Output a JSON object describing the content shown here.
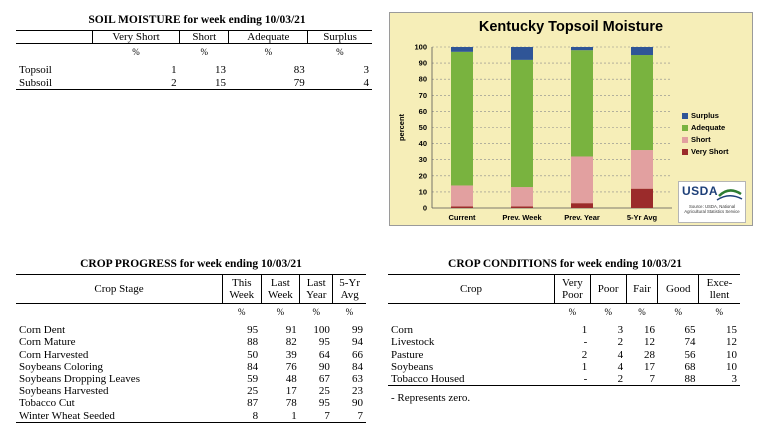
{
  "soil": {
    "title": "SOIL MOISTURE for week ending 10/03/21",
    "headers": [
      "Very Short",
      "Short",
      "Adequate",
      "Surplus"
    ],
    "unit": "%",
    "rows": [
      {
        "label": "Topsoil",
        "values": [
          "1",
          "13",
          "83",
          "3"
        ]
      },
      {
        "label": "Subsoil",
        "values": [
          "2",
          "15",
          "79",
          "4"
        ]
      }
    ]
  },
  "progress": {
    "title": "CROP PROGRESS for week ending 10/03/21",
    "stage_header": "Crop Stage",
    "col_headers": [
      {
        "top": "This",
        "bottom": "Week"
      },
      {
        "top": "Last",
        "bottom": "Week"
      },
      {
        "top": "Last",
        "bottom": "Year"
      },
      {
        "top": "5-Yr",
        "bottom": "Avg"
      }
    ],
    "unit": "%",
    "rows": [
      {
        "label": "Corn Dent",
        "values": [
          "95",
          "91",
          "100",
          "99"
        ]
      },
      {
        "label": "Corn Mature",
        "values": [
          "88",
          "82",
          "95",
          "94"
        ]
      },
      {
        "label": "Corn Harvested",
        "values": [
          "50",
          "39",
          "64",
          "66"
        ]
      },
      {
        "label": "Soybeans Coloring",
        "values": [
          "84",
          "76",
          "90",
          "84"
        ]
      },
      {
        "label": "Soybeans Dropping Leaves",
        "values": [
          "59",
          "48",
          "67",
          "63"
        ]
      },
      {
        "label": "Soybeans Harvested",
        "values": [
          "25",
          "17",
          "25",
          "23"
        ]
      },
      {
        "label": "Tobacco Cut",
        "values": [
          "87",
          "78",
          "95",
          "90"
        ]
      },
      {
        "label": "Winter Wheat Seeded",
        "values": [
          "8",
          "1",
          "7",
          "7"
        ]
      }
    ]
  },
  "conditions": {
    "title": "CROP CONDITIONS for week ending 10/03/21",
    "crop_header": "Crop",
    "col_headers": [
      {
        "top": "Very",
        "bottom": "Poor"
      },
      {
        "top": "Poor",
        "bottom": ""
      },
      {
        "top": "Fair",
        "bottom": ""
      },
      {
        "top": "Good",
        "bottom": ""
      },
      {
        "top": "Exce-",
        "bottom": "llent"
      }
    ],
    "unit": "%",
    "rows": [
      {
        "label": "Corn",
        "values": [
          "1",
          "3",
          "16",
          "65",
          "15"
        ]
      },
      {
        "label": "Livestock",
        "values": [
          "-",
          "2",
          "12",
          "74",
          "12"
        ]
      },
      {
        "label": "Pasture",
        "values": [
          "2",
          "4",
          "28",
          "56",
          "10"
        ]
      },
      {
        "label": "Soybeans",
        "values": [
          "1",
          "4",
          "17",
          "68",
          "10"
        ]
      },
      {
        "label": "Tobacco Housed",
        "values": [
          "-",
          "2",
          "7",
          "88",
          "3"
        ]
      }
    ],
    "footnote": "- Represents zero."
  },
  "usda": {
    "logo": "USDA",
    "source": "Source: USDA, National Agricultural Statistics Service"
  },
  "chart_data": {
    "type": "bar",
    "stacked": true,
    "title": "Kentucky Topsoil Moisture",
    "ylabel": "percent",
    "xlabel": "",
    "ylim": [
      0,
      100
    ],
    "yticks": [
      0,
      10,
      20,
      30,
      40,
      50,
      60,
      70,
      80,
      90,
      100
    ],
    "categories": [
      "Current",
      "Prev. Week",
      "Prev. Year",
      "5-Yr Avg"
    ],
    "series": [
      {
        "name": "Very Short",
        "color": "#9b2b2b",
        "values": [
          1,
          1,
          3,
          12
        ]
      },
      {
        "name": "Short",
        "color": "#e2a0a0",
        "values": [
          13,
          12,
          29,
          24
        ]
      },
      {
        "name": "Adequate",
        "color": "#79b33f",
        "values": [
          83,
          79,
          66,
          59
        ]
      },
      {
        "name": "Surplus",
        "color": "#2f5597",
        "values": [
          3,
          8,
          2,
          5
        ]
      }
    ],
    "legend_order": [
      "Surplus",
      "Adequate",
      "Short",
      "Very Short"
    ],
    "legend_position": "right",
    "grid": true
  }
}
